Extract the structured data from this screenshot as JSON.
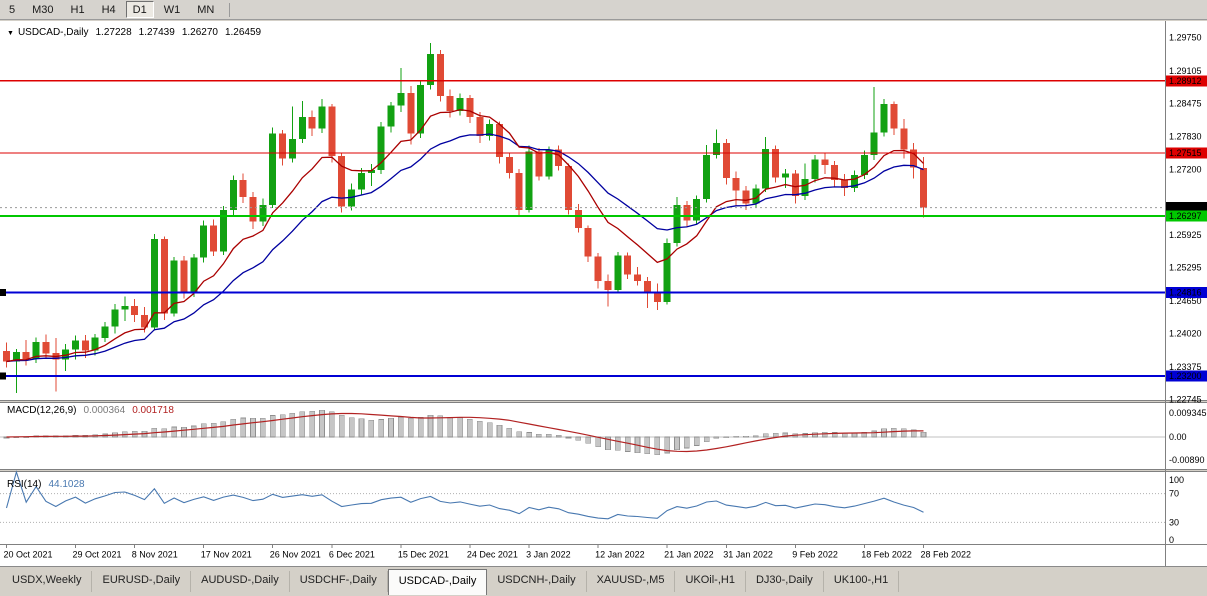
{
  "toolbar": {
    "timeframes": [
      "5",
      "M30",
      "H1",
      "H4",
      "D1",
      "W1",
      "MN"
    ],
    "active_timeframe": "D1"
  },
  "chart": {
    "symbol_title": "USDCAD-,Daily",
    "collapse_arrow": "▼",
    "ohlc_display": [
      "1.27228",
      "1.27439",
      "1.26270",
      "1.26459"
    ],
    "bid_price": "1.26459",
    "colors": {
      "bull": "#12a112",
      "bear": "#e04a35",
      "ma_fast": "#aa0000",
      "ma_slow": "#0000a0",
      "background": "#ffffff",
      "foreground": "#000000"
    },
    "hlines": [
      {
        "price": 1.28912,
        "color": "#dd0000",
        "width": 1.2,
        "anchor": false
      },
      {
        "price": 1.27515,
        "color": "#dd0000",
        "width": 1.2,
        "anchor": false
      },
      {
        "price": 1.26297,
        "color": "#00c800",
        "width": 2,
        "anchor": false
      },
      {
        "price": 1.24816,
        "color": "#0000d4",
        "width": 2,
        "anchor": true
      },
      {
        "price": 1.232,
        "color": "#0000d4",
        "width": 2,
        "anchor": true
      }
    ],
    "price_scale_labels": [
      "1.29750",
      "1.29105",
      "1.28475",
      "1.27830",
      "1.27200",
      "1.25925",
      "1.25295",
      "1.24650",
      "1.24020",
      "1.23375",
      "1.22745"
    ],
    "badges": [
      {
        "value": "1.28912",
        "bg": "#dd0000",
        "fg": "#ffffff"
      },
      {
        "value": "1.27515",
        "bg": "#dd0000",
        "fg": "#ffffff"
      },
      {
        "value": "1.26459",
        "bg": "#000000",
        "fg": "#ffffff"
      },
      {
        "value": "1.26297",
        "bg": "#00c800",
        "fg": "#ffffff"
      },
      {
        "value": "1.24816",
        "bg": "#0000d4",
        "fg": "#ffffff"
      },
      {
        "value": "1.23200",
        "bg": "#0000d4",
        "fg": "#ffffff"
      }
    ],
    "date_labels": [
      {
        "label": "20 Oct 2021",
        "candle": 0
      },
      {
        "label": "29 Oct 2021",
        "candle": 7
      },
      {
        "label": "8 Nov 2021",
        "candle": 13
      },
      {
        "label": "17 Nov 2021",
        "candle": 20
      },
      {
        "label": "26 Nov 2021",
        "candle": 27
      },
      {
        "label": "6 Dec 2021",
        "candle": 33
      },
      {
        "label": "15 Dec 2021",
        "candle": 40
      },
      {
        "label": "24 Dec 2021",
        "candle": 47
      },
      {
        "label": "3 Jan 2022",
        "candle": 53
      },
      {
        "label": "12 Jan 2022",
        "candle": 60
      },
      {
        "label": "21 Jan 2022",
        "candle": 67
      },
      {
        "label": "31 Jan 2022",
        "candle": 73
      },
      {
        "label": "9 Feb 2022",
        "candle": 80
      },
      {
        "label": "18 Feb 2022",
        "candle": 87
      },
      {
        "label": "28 Feb 2022",
        "candle": 93
      }
    ],
    "candles": [
      [
        1.2368,
        1.2385,
        1.2336,
        1.2348
      ],
      [
        1.2348,
        1.2372,
        1.2287,
        1.2366
      ],
      [
        1.2366,
        1.239,
        1.234,
        1.2353
      ],
      [
        1.2353,
        1.2394,
        1.2345,
        1.2386
      ],
      [
        1.2386,
        1.24,
        1.2356,
        1.2364
      ],
      [
        1.2364,
        1.2393,
        1.229,
        1.2352
      ],
      [
        1.2352,
        1.2382,
        1.233,
        1.2371
      ],
      [
        1.2371,
        1.2398,
        1.2352,
        1.2389
      ],
      [
        1.2389,
        1.2399,
        1.2355,
        1.2369
      ],
      [
        1.2369,
        1.2401,
        1.236,
        1.2394
      ],
      [
        1.2394,
        1.2424,
        1.2386,
        1.2416
      ],
      [
        1.2416,
        1.2459,
        1.2402,
        1.2449
      ],
      [
        1.2449,
        1.2474,
        1.2426,
        1.2455
      ],
      [
        1.2455,
        1.2469,
        1.2424,
        1.2438
      ],
      [
        1.2438,
        1.2453,
        1.2404,
        1.2414
      ],
      [
        1.2414,
        1.2595,
        1.2408,
        1.2585
      ],
      [
        1.2585,
        1.259,
        1.2428,
        1.2441
      ],
      [
        1.2441,
        1.255,
        1.2435,
        1.2543
      ],
      [
        1.2543,
        1.2552,
        1.247,
        1.2481
      ],
      [
        1.2481,
        1.2556,
        1.2473,
        1.2549
      ],
      [
        1.2549,
        1.2621,
        1.254,
        1.2611
      ],
      [
        1.2611,
        1.2623,
        1.2552,
        1.2561
      ],
      [
        1.2561,
        1.2649,
        1.2554,
        1.2641
      ],
      [
        1.2641,
        1.2708,
        1.263,
        1.2699
      ],
      [
        1.2699,
        1.2712,
        1.2655,
        1.2666
      ],
      [
        1.2666,
        1.2676,
        1.2604,
        1.2619
      ],
      [
        1.2619,
        1.2663,
        1.261,
        1.2651
      ],
      [
        1.2651,
        1.2801,
        1.2645,
        1.2789
      ],
      [
        1.2789,
        1.2796,
        1.2727,
        1.2741
      ],
      [
        1.2741,
        1.2841,
        1.2733,
        1.2779
      ],
      [
        1.2779,
        1.2852,
        1.2771,
        1.2821
      ],
      [
        1.2821,
        1.2834,
        1.2784,
        1.2799
      ],
      [
        1.2799,
        1.2856,
        1.279,
        1.2841
      ],
      [
        1.2841,
        1.2846,
        1.2733,
        1.2746
      ],
      [
        1.2746,
        1.2752,
        1.2636,
        1.2648
      ],
      [
        1.2648,
        1.2692,
        1.264,
        1.2681
      ],
      [
        1.2681,
        1.2722,
        1.267,
        1.2713
      ],
      [
        1.2713,
        1.273,
        1.2688,
        1.2719
      ],
      [
        1.2719,
        1.2811,
        1.2711,
        1.2803
      ],
      [
        1.2803,
        1.285,
        1.2791,
        1.2843
      ],
      [
        1.2843,
        1.2916,
        1.2831,
        1.2868
      ],
      [
        1.2868,
        1.2881,
        1.2768,
        1.2789
      ],
      [
        1.2789,
        1.2891,
        1.2781,
        1.2883
      ],
      [
        1.2883,
        1.2964,
        1.2874,
        1.2943
      ],
      [
        1.2943,
        1.2951,
        1.2851,
        1.2862
      ],
      [
        1.2862,
        1.2874,
        1.282,
        1.2833
      ],
      [
        1.2833,
        1.2867,
        1.2824,
        1.2858
      ],
      [
        1.2858,
        1.2864,
        1.281,
        1.2821
      ],
      [
        1.2821,
        1.2831,
        1.2771,
        1.2784
      ],
      [
        1.2784,
        1.2816,
        1.2776,
        1.2808
      ],
      [
        1.2808,
        1.2812,
        1.2731,
        1.2744
      ],
      [
        1.2744,
        1.2752,
        1.2702,
        1.2713
      ],
      [
        1.2713,
        1.2721,
        1.2629,
        1.2641
      ],
      [
        1.2641,
        1.2766,
        1.2636,
        1.2754
      ],
      [
        1.2754,
        1.2761,
        1.2698,
        1.2706
      ],
      [
        1.2706,
        1.2764,
        1.27,
        1.2758
      ],
      [
        1.2758,
        1.2766,
        1.2718,
        1.2726
      ],
      [
        1.2726,
        1.2731,
        1.2632,
        1.2641
      ],
      [
        1.2641,
        1.2653,
        1.2598,
        1.2606
      ],
      [
        1.2606,
        1.2611,
        1.2541,
        1.2551
      ],
      [
        1.2551,
        1.2558,
        1.2489,
        1.2504
      ],
      [
        1.2504,
        1.2516,
        1.2454,
        1.2486
      ],
      [
        1.2486,
        1.256,
        1.248,
        1.2553
      ],
      [
        1.2553,
        1.2559,
        1.2508,
        1.2516
      ],
      [
        1.2516,
        1.2531,
        1.2495,
        1.2504
      ],
      [
        1.2504,
        1.2512,
        1.2452,
        1.2481
      ],
      [
        1.2481,
        1.2499,
        1.2448,
        1.2463
      ],
      [
        1.2463,
        1.2586,
        1.2458,
        1.2577
      ],
      [
        1.2577,
        1.2666,
        1.2571,
        1.2651
      ],
      [
        1.2651,
        1.2659,
        1.2608,
        1.2621
      ],
      [
        1.2621,
        1.2669,
        1.2614,
        1.2662
      ],
      [
        1.2662,
        1.2767,
        1.2656,
        1.2748
      ],
      [
        1.2748,
        1.2797,
        1.2741,
        1.2771
      ],
      [
        1.2771,
        1.2779,
        1.2691,
        1.2703
      ],
      [
        1.2703,
        1.2716,
        1.2648,
        1.2679
      ],
      [
        1.2679,
        1.2688,
        1.2641,
        1.2654
      ],
      [
        1.2654,
        1.2691,
        1.2646,
        1.2683
      ],
      [
        1.2683,
        1.2782,
        1.2676,
        1.2759
      ],
      [
        1.2759,
        1.2766,
        1.2694,
        1.2704
      ],
      [
        1.2704,
        1.2721,
        1.2684,
        1.2712
      ],
      [
        1.2712,
        1.2719,
        1.2654,
        1.2668
      ],
      [
        1.2668,
        1.2731,
        1.2661,
        1.2701
      ],
      [
        1.2701,
        1.2748,
        1.2694,
        1.2739
      ],
      [
        1.2739,
        1.2751,
        1.2711,
        1.2728
      ],
      [
        1.2728,
        1.2736,
        1.2686,
        1.2699
      ],
      [
        1.2699,
        1.2711,
        1.2668,
        1.2684
      ],
      [
        1.2684,
        1.2718,
        1.2676,
        1.2709
      ],
      [
        1.2709,
        1.2756,
        1.2701,
        1.2748
      ],
      [
        1.2748,
        1.2879,
        1.2738,
        1.2791
      ],
      [
        1.2791,
        1.2856,
        1.2783,
        1.2846
      ],
      [
        1.2846,
        1.2851,
        1.2786,
        1.2799
      ],
      [
        1.2799,
        1.2817,
        1.2741,
        1.2758
      ],
      [
        1.2758,
        1.2771,
        1.2702,
        1.2723
      ],
      [
        1.27228,
        1.27439,
        1.2627,
        1.26459
      ]
    ],
    "macd": {
      "label": "MACD(12,26,9)",
      "value_main": "0.000364",
      "value_signal": "0.001718",
      "scale_labels": [
        "0.009345",
        "0.00",
        "-0.00890"
      ],
      "hist_color": "#c6c6c6",
      "hist_border": "#8f8f8f",
      "signal_color": "#b22222"
    },
    "rsi": {
      "label": "RSI(14)",
      "value": "44.1028",
      "scale_labels": [
        "100",
        "70",
        "30",
        "0"
      ],
      "level_high": 70,
      "level_low": 30,
      "line_color": "#4878b0"
    }
  },
  "tabs": {
    "items": [
      "USDX,Weekly",
      "EURUSD-,Daily",
      "AUDUSD-,Daily",
      "USDCHF-,Daily",
      "USDCAD-,Daily",
      "USDCNH-,Daily",
      "XAUUSD-,M5",
      "UKOil-,H1",
      "DJ30-,Daily",
      "UK100-,H1"
    ],
    "active": "USDCAD-,Daily"
  }
}
